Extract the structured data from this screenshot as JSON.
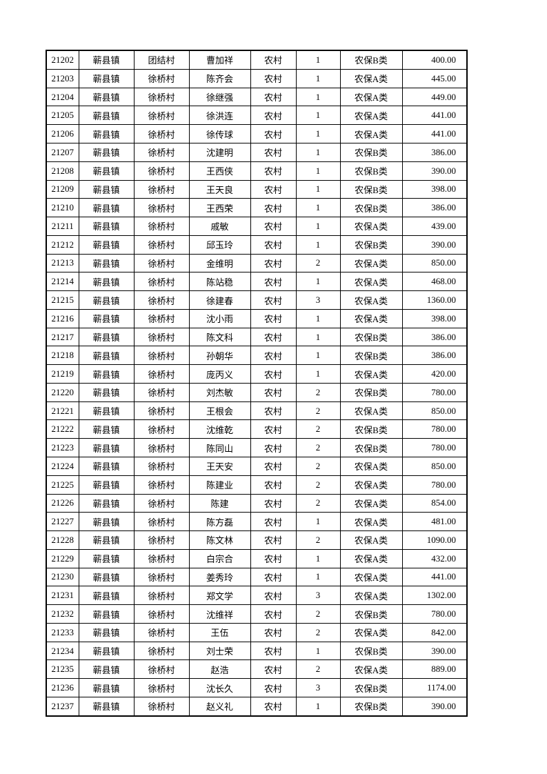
{
  "page": {
    "background_color": "#ffffff",
    "text_color": "#000000",
    "border_color": "#000000"
  },
  "table": {
    "fields": [
      "serial-number",
      "town",
      "village",
      "person-name",
      "residence-type",
      "person-count",
      "insurance-category",
      "amount"
    ],
    "rows": [
      [
        "21202",
        "蕲县镇",
        "团结村",
        "曹加祥",
        "农村",
        "1",
        "农保B类",
        "400.00"
      ],
      [
        "21203",
        "蕲县镇",
        "徐桥村",
        "陈齐会",
        "农村",
        "1",
        "农保A类",
        "445.00"
      ],
      [
        "21204",
        "蕲县镇",
        "徐桥村",
        "徐继强",
        "农村",
        "1",
        "农保A类",
        "449.00"
      ],
      [
        "21205",
        "蕲县镇",
        "徐桥村",
        "徐洪连",
        "农村",
        "1",
        "农保A类",
        "441.00"
      ],
      [
        "21206",
        "蕲县镇",
        "徐桥村",
        "徐传球",
        "农村",
        "1",
        "农保A类",
        "441.00"
      ],
      [
        "21207",
        "蕲县镇",
        "徐桥村",
        "沈建明",
        "农村",
        "1",
        "农保B类",
        "386.00"
      ],
      [
        "21208",
        "蕲县镇",
        "徐桥村",
        "王西侠",
        "农村",
        "1",
        "农保B类",
        "390.00"
      ],
      [
        "21209",
        "蕲县镇",
        "徐桥村",
        "王天良",
        "农村",
        "1",
        "农保B类",
        "398.00"
      ],
      [
        "21210",
        "蕲县镇",
        "徐桥村",
        "王西荣",
        "农村",
        "1",
        "农保B类",
        "386.00"
      ],
      [
        "21211",
        "蕲县镇",
        "徐桥村",
        "戚敏",
        "农村",
        "1",
        "农保A类",
        "439.00"
      ],
      [
        "21212",
        "蕲县镇",
        "徐桥村",
        "邱玉玲",
        "农村",
        "1",
        "农保B类",
        "390.00"
      ],
      [
        "21213",
        "蕲县镇",
        "徐桥村",
        "金维明",
        "农村",
        "2",
        "农保A类",
        "850.00"
      ],
      [
        "21214",
        "蕲县镇",
        "徐桥村",
        "陈站稳",
        "农村",
        "1",
        "农保A类",
        "468.00"
      ],
      [
        "21215",
        "蕲县镇",
        "徐桥村",
        "徐建春",
        "农村",
        "3",
        "农保A类",
        "1360.00"
      ],
      [
        "21216",
        "蕲县镇",
        "徐桥村",
        "沈小雨",
        "农村",
        "1",
        "农保A类",
        "398.00"
      ],
      [
        "21217",
        "蕲县镇",
        "徐桥村",
        "陈文科",
        "农村",
        "1",
        "农保B类",
        "386.00"
      ],
      [
        "21218",
        "蕲县镇",
        "徐桥村",
        "孙朝华",
        "农村",
        "1",
        "农保B类",
        "386.00"
      ],
      [
        "21219",
        "蕲县镇",
        "徐桥村",
        "庞丙义",
        "农村",
        "1",
        "农保A类",
        "420.00"
      ],
      [
        "21220",
        "蕲县镇",
        "徐桥村",
        "刘杰敏",
        "农村",
        "2",
        "农保B类",
        "780.00"
      ],
      [
        "21221",
        "蕲县镇",
        "徐桥村",
        "王根会",
        "农村",
        "2",
        "农保A类",
        "850.00"
      ],
      [
        "21222",
        "蕲县镇",
        "徐桥村",
        "沈维乾",
        "农村",
        "2",
        "农保B类",
        "780.00"
      ],
      [
        "21223",
        "蕲县镇",
        "徐桥村",
        "陈同山",
        "农村",
        "2",
        "农保B类",
        "780.00"
      ],
      [
        "21224",
        "蕲县镇",
        "徐桥村",
        "王天安",
        "农村",
        "2",
        "农保A类",
        "850.00"
      ],
      [
        "21225",
        "蕲县镇",
        "徐桥村",
        "陈建业",
        "农村",
        "2",
        "农保A类",
        "780.00"
      ],
      [
        "21226",
        "蕲县镇",
        "徐桥村",
        "陈建",
        "农村",
        "2",
        "农保A类",
        "854.00"
      ],
      [
        "21227",
        "蕲县镇",
        "徐桥村",
        "陈方磊",
        "农村",
        "1",
        "农保A类",
        "481.00"
      ],
      [
        "21228",
        "蕲县镇",
        "徐桥村",
        "陈文林",
        "农村",
        "2",
        "农保A类",
        "1090.00"
      ],
      [
        "21229",
        "蕲县镇",
        "徐桥村",
        "白宗合",
        "农村",
        "1",
        "农保A类",
        "432.00"
      ],
      [
        "21230",
        "蕲县镇",
        "徐桥村",
        "姜秀玲",
        "农村",
        "1",
        "农保A类",
        "441.00"
      ],
      [
        "21231",
        "蕲县镇",
        "徐桥村",
        "郑文学",
        "农村",
        "3",
        "农保A类",
        "1302.00"
      ],
      [
        "21232",
        "蕲县镇",
        "徐桥村",
        "沈维祥",
        "农村",
        "2",
        "农保B类",
        "780.00"
      ],
      [
        "21233",
        "蕲县镇",
        "徐桥村",
        "王伍",
        "农村",
        "2",
        "农保A类",
        "842.00"
      ],
      [
        "21234",
        "蕲县镇",
        "徐桥村",
        "刘士荣",
        "农村",
        "1",
        "农保B类",
        "390.00"
      ],
      [
        "21235",
        "蕲县镇",
        "徐桥村",
        "赵浩",
        "农村",
        "2",
        "农保A类",
        "889.00"
      ],
      [
        "21236",
        "蕲县镇",
        "徐桥村",
        "沈长久",
        "农村",
        "3",
        "农保B类",
        "1174.00"
      ],
      [
        "21237",
        "蕲县镇",
        "徐桥村",
        "赵义礼",
        "农村",
        "1",
        "农保B类",
        "390.00"
      ]
    ]
  }
}
